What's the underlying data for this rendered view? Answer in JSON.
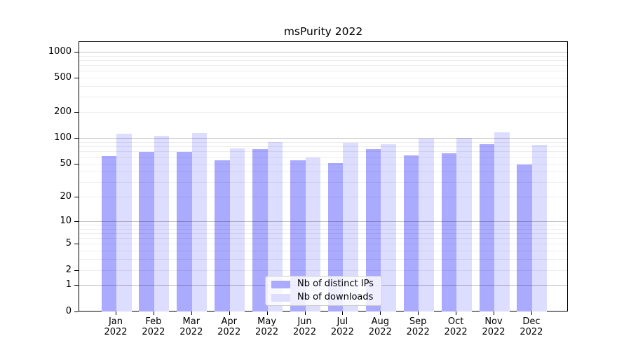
{
  "chart": {
    "title": "msPurity 2022",
    "legend": {
      "items": [
        {
          "label": "Nb of distinct IPs",
          "color": "#aaaaff"
        },
        {
          "label": "Nb of downloads",
          "color": "#ddddff"
        }
      ]
    }
  },
  "chart_data": {
    "type": "bar",
    "title": "msPurity 2022",
    "categories": [
      "Jan 2022",
      "Feb 2022",
      "Mar 2022",
      "Apr 2022",
      "May 2022",
      "Jun 2022",
      "Jul 2022",
      "Aug 2022",
      "Sep 2022",
      "Oct 2022",
      "Nov 2022",
      "Dec 2022"
    ],
    "months": [
      "Jan",
      "Feb",
      "Mar",
      "Apr",
      "May",
      "Jun",
      "Jul",
      "Aug",
      "Sep",
      "Oct",
      "Nov",
      "Dec"
    ],
    "year_label": "2022",
    "series": [
      {
        "name": "Nb of distinct IPs",
        "color": "#aaaaff",
        "values": [
          61,
          68,
          68,
          55,
          74,
          55,
          51,
          74,
          62,
          66,
          85,
          49
        ]
      },
      {
        "name": "Nb of downloads",
        "color": "#ddddff",
        "values": [
          112,
          106,
          115,
          76,
          90,
          59,
          88,
          84,
          98,
          100,
          116,
          82
        ]
      }
    ],
    "xlabel": "",
    "ylabel": "",
    "y_ticks": [
      0,
      1,
      2,
      5,
      10,
      20,
      50,
      100,
      200,
      500,
      1000
    ],
    "y_scale": "log1p",
    "ylim": [
      0,
      1320
    ],
    "grid": true,
    "grid_on_top_of_bars": true,
    "legend_position": "lower center"
  }
}
